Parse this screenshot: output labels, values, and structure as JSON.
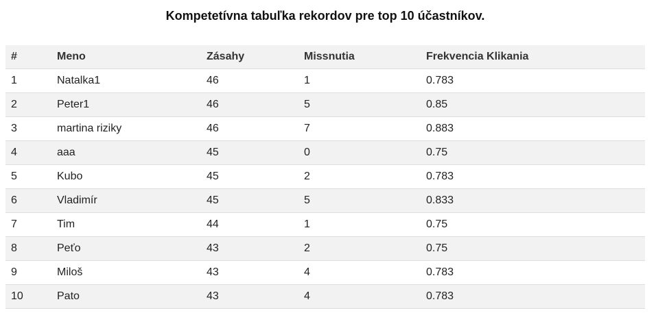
{
  "title": "Kompetetívna tabuľka rekordov pre top 10 účastníkov.",
  "table": {
    "headers": {
      "rank": "#",
      "name": "Meno",
      "hits": "Zásahy",
      "misses": "Missnutia",
      "frequency": "Frekvencia Klikania"
    },
    "rows": [
      {
        "rank": "1",
        "name": "Natalka1",
        "hits": "46",
        "misses": "1",
        "frequency": "0.783"
      },
      {
        "rank": "2",
        "name": "Peter1",
        "hits": "46",
        "misses": "5",
        "frequency": "0.85"
      },
      {
        "rank": "3",
        "name": "martina riziky",
        "hits": "46",
        "misses": "7",
        "frequency": "0.883"
      },
      {
        "rank": "4",
        "name": "aaa",
        "hits": "45",
        "misses": "0",
        "frequency": "0.75"
      },
      {
        "rank": "5",
        "name": "Kubo",
        "hits": "45",
        "misses": "2",
        "frequency": "0.783"
      },
      {
        "rank": "6",
        "name": "Vladimír",
        "hits": "45",
        "misses": "5",
        "frequency": "0.833"
      },
      {
        "rank": "7",
        "name": "Tim",
        "hits": "44",
        "misses": "1",
        "frequency": "0.75"
      },
      {
        "rank": "8",
        "name": "Peťo",
        "hits": "43",
        "misses": "2",
        "frequency": "0.75"
      },
      {
        "rank": "9",
        "name": "Miloš",
        "hits": "43",
        "misses": "4",
        "frequency": "0.783"
      },
      {
        "rank": "10",
        "name": "Pato",
        "hits": "43",
        "misses": "4",
        "frequency": "0.783"
      }
    ]
  }
}
